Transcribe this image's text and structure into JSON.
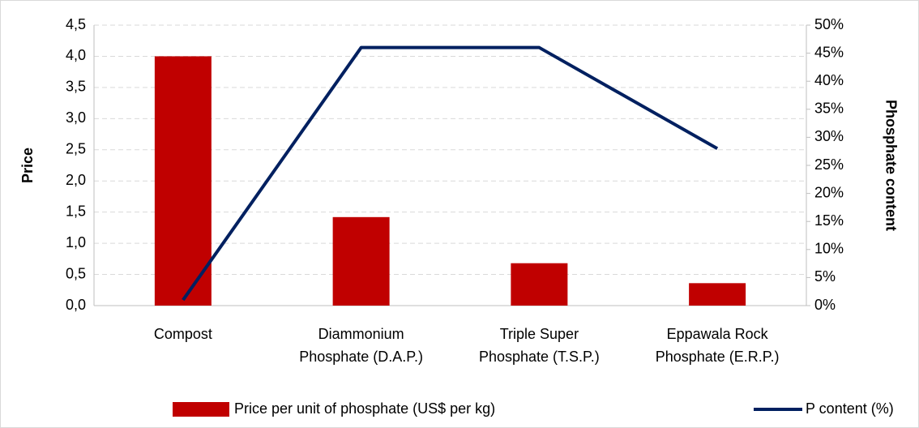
{
  "chart_data": {
    "type": "combo",
    "categories": [
      "Compost",
      "Diammonium Phosphate (D.A.P.)",
      "Triple Super Phosphate (T.S.P.)",
      "Eppawala Rock Phosphate (E.R.P.)"
    ],
    "series": [
      {
        "name": "Price per unit of phosphate (US$ per kg)",
        "type": "bar",
        "color": "#c00000",
        "values": [
          4.0,
          1.42,
          0.68,
          0.36
        ]
      },
      {
        "name": "P content (%)",
        "type": "line",
        "axis": "y2",
        "color": "#002060",
        "values": [
          1,
          46,
          46,
          28
        ]
      }
    ],
    "y_label": "Price",
    "y2_label": "Phosphate content",
    "ylim": [
      0,
      4.5
    ],
    "yticks": [
      {
        "value": 0,
        "label": "0,0"
      },
      {
        "value": 0.5,
        "label": "0,5"
      },
      {
        "value": 1,
        "label": "1,0"
      },
      {
        "value": 1.5,
        "label": "1,5"
      },
      {
        "value": 2,
        "label": "2,0"
      },
      {
        "value": 2.5,
        "label": "2,5"
      },
      {
        "value": 3,
        "label": "3,0"
      },
      {
        "value": 3.5,
        "label": "3,5"
      },
      {
        "value": 4,
        "label": "4,0"
      },
      {
        "value": 4.5,
        "label": "4,5"
      }
    ],
    "y2lim": [
      0,
      50
    ],
    "y2ticks": [
      {
        "value": 0,
        "label": "0%"
      },
      {
        "value": 5,
        "label": "5%"
      },
      {
        "value": 10,
        "label": "10%"
      },
      {
        "value": 15,
        "label": "15%"
      },
      {
        "value": 20,
        "label": "20%"
      },
      {
        "value": 25,
        "label": "25%"
      },
      {
        "value": 30,
        "label": "30%"
      },
      {
        "value": 35,
        "label": "35%"
      },
      {
        "value": 40,
        "label": "40%"
      },
      {
        "value": 45,
        "label": "45%"
      },
      {
        "value": 50,
        "label": "50%"
      }
    ],
    "grid": true,
    "legend": "bottom"
  }
}
